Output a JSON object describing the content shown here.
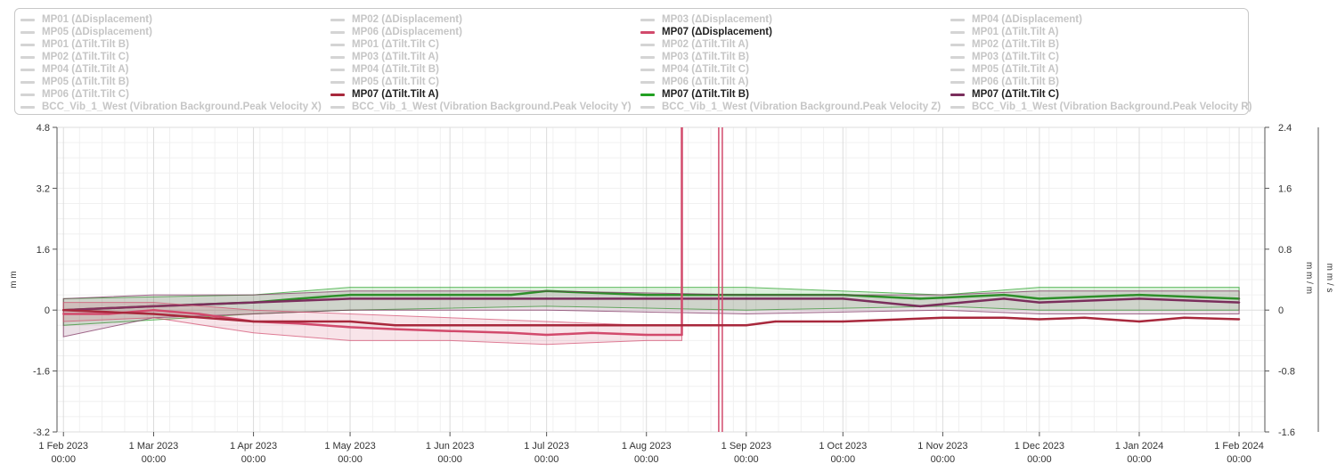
{
  "legend": {
    "items": [
      {
        "label": "MP01 (ΔDisplacement)",
        "visible": false,
        "color": "#d4d4d4"
      },
      {
        "label": "MP02 (ΔDisplacement)",
        "visible": false,
        "color": "#d4d4d4"
      },
      {
        "label": "MP03 (ΔDisplacement)",
        "visible": false,
        "color": "#d4d4d4"
      },
      {
        "label": "MP04 (ΔDisplacement)",
        "visible": false,
        "color": "#d4d4d4"
      },
      {
        "label": "MP05 (ΔDisplacement)",
        "visible": false,
        "color": "#d4d4d4"
      },
      {
        "label": "MP06 (ΔDisplacement)",
        "visible": false,
        "color": "#d4d4d4"
      },
      {
        "label": "MP07 (ΔDisplacement)",
        "visible": true,
        "color": "#d24a6c"
      },
      {
        "label": "MP01 (ΔTilt.Tilt A)",
        "visible": false,
        "color": "#d4d4d4"
      },
      {
        "label": "MP01 (ΔTilt.Tilt B)",
        "visible": false,
        "color": "#d4d4d4"
      },
      {
        "label": "MP01 (ΔTilt.Tilt C)",
        "visible": false,
        "color": "#d4d4d4"
      },
      {
        "label": "MP02 (ΔTilt.Tilt A)",
        "visible": false,
        "color": "#d4d4d4"
      },
      {
        "label": "MP02 (ΔTilt.Tilt B)",
        "visible": false,
        "color": "#d4d4d4"
      },
      {
        "label": "MP02 (ΔTilt.Tilt C)",
        "visible": false,
        "color": "#d4d4d4"
      },
      {
        "label": "MP03 (ΔTilt.Tilt A)",
        "visible": false,
        "color": "#d4d4d4"
      },
      {
        "label": "MP03 (ΔTilt.Tilt B)",
        "visible": false,
        "color": "#d4d4d4"
      },
      {
        "label": "MP03 (ΔTilt.Tilt C)",
        "visible": false,
        "color": "#d4d4d4"
      },
      {
        "label": "MP04 (ΔTilt.Tilt A)",
        "visible": false,
        "color": "#d4d4d4"
      },
      {
        "label": "MP04 (ΔTilt.Tilt B)",
        "visible": false,
        "color": "#d4d4d4"
      },
      {
        "label": "MP04 (ΔTilt.Tilt C)",
        "visible": false,
        "color": "#d4d4d4"
      },
      {
        "label": "MP05 (ΔTilt.Tilt A)",
        "visible": false,
        "color": "#d4d4d4"
      },
      {
        "label": "MP05 (ΔTilt.Tilt B)",
        "visible": false,
        "color": "#d4d4d4"
      },
      {
        "label": "MP05 (ΔTilt.Tilt C)",
        "visible": false,
        "color": "#d4d4d4"
      },
      {
        "label": "MP06 (ΔTilt.Tilt A)",
        "visible": false,
        "color": "#d4d4d4"
      },
      {
        "label": "MP06 (ΔTilt.Tilt B)",
        "visible": false,
        "color": "#d4d4d4"
      },
      {
        "label": "MP06 (ΔTilt.Tilt C)",
        "visible": false,
        "color": "#d4d4d4"
      },
      {
        "label": "MP07 (ΔTilt.Tilt A)",
        "visible": true,
        "color": "#a8283c"
      },
      {
        "label": "MP07 (ΔTilt.Tilt B)",
        "visible": true,
        "color": "#22a022"
      },
      {
        "label": "MP07 (ΔTilt.Tilt C)",
        "visible": true,
        "color": "#7a2e5c"
      },
      {
        "label": "BCC_Vib_1_West (Vibration Background.Peak Velocity X)",
        "visible": false,
        "color": "#d4d4d4"
      },
      {
        "label": "BCC_Vib_1_West (Vibration Background.Peak Velocity Y)",
        "visible": false,
        "color": "#d4d4d4"
      },
      {
        "label": "BCC_Vib_1_West (Vibration Background.Peak Velocity Z)",
        "visible": false,
        "color": "#d4d4d4"
      },
      {
        "label": "BCC_Vib_1_West (Vibration Background.Peak Velocity R)",
        "visible": false,
        "color": "#d4d4d4"
      }
    ]
  },
  "chart_data": {
    "type": "line",
    "left_axis": {
      "label": "m m",
      "ticks": [
        "4.8",
        "3.2",
        "1.6",
        "0",
        "-1.6",
        "-3.2"
      ],
      "range": [
        -3.2,
        4.8
      ]
    },
    "right_axis_1": {
      "label": "m m / m",
      "ticks": [
        "2.4",
        "1.6",
        "0.8",
        "0",
        "-0.8",
        "-1.6"
      ],
      "range": [
        -1.6,
        2.4
      ]
    },
    "right_axis_2": {
      "label": "m m / s",
      "range": [
        -1.6,
        2.4
      ]
    },
    "x_axis": {
      "ticks": [
        {
          "date": "2023-02-01",
          "line1": "1 Feb 2023",
          "line2": "00:00"
        },
        {
          "date": "2023-03-01",
          "line1": "1 Mar 2023",
          "line2": "00:00"
        },
        {
          "date": "2023-04-01",
          "line1": "1 Apr 2023",
          "line2": "00:00"
        },
        {
          "date": "2023-05-01",
          "line1": "1 May 2023",
          "line2": "00:00"
        },
        {
          "date": "2023-06-01",
          "line1": "1 Jun 2023",
          "line2": "00:00"
        },
        {
          "date": "2023-07-01",
          "line1": "1 Jul 2023",
          "line2": "00:00"
        },
        {
          "date": "2023-08-01",
          "line1": "1 Aug 2023",
          "line2": "00:00"
        },
        {
          "date": "2023-09-01",
          "line1": "1 Sep 2023",
          "line2": "00:00"
        },
        {
          "date": "2023-10-01",
          "line1": "1 Oct 2023",
          "line2": "00:00"
        },
        {
          "date": "2023-11-01",
          "line1": "1 Nov 2023",
          "line2": "00:00"
        },
        {
          "date": "2023-12-01",
          "line1": "1 Dec 2023",
          "line2": "00:00"
        },
        {
          "date": "2024-01-01",
          "line1": "1 Jan 2024",
          "line2": "00:00"
        },
        {
          "date": "2024-02-01",
          "line1": "1 Feb 2024",
          "line2": "00:00"
        }
      ],
      "range": [
        "2023-01-30",
        "2024-02-09"
      ]
    },
    "grid": true,
    "series": [
      {
        "name": "MP07 (ΔDisplacement)",
        "color": "#d24a6c",
        "axis": "left",
        "points": [
          [
            "2023-02-01",
            -0.1
          ],
          [
            "2023-02-15",
            -0.1
          ],
          [
            "2023-03-01",
            0.0
          ],
          [
            "2023-03-15",
            -0.1
          ],
          [
            "2023-04-01",
            -0.3
          ],
          [
            "2023-04-15",
            -0.35
          ],
          [
            "2023-05-01",
            -0.45
          ],
          [
            "2023-05-15",
            -0.5
          ],
          [
            "2023-06-01",
            -0.55
          ],
          [
            "2023-06-20",
            -0.6
          ],
          [
            "2023-07-01",
            -0.65
          ],
          [
            "2023-07-15",
            -0.6
          ],
          [
            "2023-08-01",
            -0.65
          ],
          [
            "2023-08-12",
            -0.65
          ],
          [
            "2023-08-12",
            4.8
          ]
        ],
        "envelope": [
          [
            "2023-02-01",
            -0.3,
            0.2
          ],
          [
            "2023-03-01",
            -0.2,
            0.2
          ],
          [
            "2023-04-01",
            -0.6,
            0.0
          ],
          [
            "2023-05-01",
            -0.8,
            -0.1
          ],
          [
            "2023-06-01",
            -0.8,
            -0.2
          ],
          [
            "2023-07-01",
            -0.9,
            -0.3
          ],
          [
            "2023-08-01",
            -0.8,
            -0.4
          ],
          [
            "2023-08-12",
            -0.8,
            -0.4
          ]
        ],
        "spike": {
          "date": "2023-08-24",
          "from": 4.8,
          "to": -3.2
        }
      },
      {
        "name": "MP07 (ΔTilt.Tilt A)",
        "color": "#a8283c",
        "axis": "right",
        "points": [
          [
            "2023-02-01",
            0.0
          ],
          [
            "2023-03-01",
            -0.05
          ],
          [
            "2023-04-01",
            -0.15
          ],
          [
            "2023-05-01",
            -0.15
          ],
          [
            "2023-05-15",
            -0.2
          ],
          [
            "2023-06-01",
            -0.2
          ],
          [
            "2023-07-01",
            -0.2
          ],
          [
            "2023-08-01",
            -0.2
          ],
          [
            "2023-09-01",
            -0.2
          ],
          [
            "2023-09-10",
            -0.15
          ],
          [
            "2023-10-01",
            -0.15
          ],
          [
            "2023-11-01",
            -0.1
          ],
          [
            "2023-11-20",
            -0.1
          ],
          [
            "2023-12-01",
            -0.12
          ],
          [
            "2023-12-15",
            -0.1
          ],
          [
            "2024-01-01",
            -0.15
          ],
          [
            "2024-01-15",
            -0.1
          ],
          [
            "2024-02-01",
            -0.12
          ]
        ]
      },
      {
        "name": "MP07 (ΔTilt.Tilt B)",
        "color": "#22a022",
        "axis": "right",
        "points": [
          [
            "2023-02-01",
            0.0
          ],
          [
            "2023-03-01",
            0.05
          ],
          [
            "2023-04-01",
            0.1
          ],
          [
            "2023-04-15",
            0.15
          ],
          [
            "2023-05-01",
            0.2
          ],
          [
            "2023-06-01",
            0.2
          ],
          [
            "2023-06-20",
            0.2
          ],
          [
            "2023-07-01",
            0.25
          ],
          [
            "2023-08-01",
            0.2
          ],
          [
            "2023-09-01",
            0.2
          ],
          [
            "2023-10-01",
            0.2
          ],
          [
            "2023-10-25",
            0.15
          ],
          [
            "2023-11-20",
            0.2
          ],
          [
            "2023-12-01",
            0.15
          ],
          [
            "2024-01-01",
            0.2
          ],
          [
            "2024-02-01",
            0.15
          ]
        ],
        "envelope": [
          [
            "2023-02-01",
            -0.2,
            0.15
          ],
          [
            "2023-04-01",
            -0.05,
            0.2
          ],
          [
            "2023-05-01",
            0.0,
            0.3
          ],
          [
            "2023-07-01",
            0.05,
            0.3
          ],
          [
            "2023-09-01",
            0.0,
            0.3
          ],
          [
            "2023-11-01",
            0.05,
            0.2
          ],
          [
            "2023-12-01",
            0.0,
            0.3
          ],
          [
            "2024-02-01",
            0.0,
            0.3
          ]
        ]
      },
      {
        "name": "MP07 (ΔTilt.Tilt C)",
        "color": "#7a2e5c",
        "axis": "right",
        "points": [
          [
            "2023-02-01",
            0.0
          ],
          [
            "2023-03-01",
            0.05
          ],
          [
            "2023-04-01",
            0.1
          ],
          [
            "2023-05-01",
            0.15
          ],
          [
            "2023-06-01",
            0.15
          ],
          [
            "2023-07-01",
            0.15
          ],
          [
            "2023-08-01",
            0.15
          ],
          [
            "2023-09-01",
            0.15
          ],
          [
            "2023-10-01",
            0.15
          ],
          [
            "2023-10-25",
            0.05
          ],
          [
            "2023-11-20",
            0.15
          ],
          [
            "2023-12-01",
            0.1
          ],
          [
            "2024-01-01",
            0.15
          ],
          [
            "2024-02-01",
            0.1
          ]
        ],
        "envelope": [
          [
            "2023-02-01",
            -0.35,
            0.15
          ],
          [
            "2023-03-01",
            -0.1,
            0.2
          ],
          [
            "2023-04-01",
            -0.05,
            0.2
          ],
          [
            "2023-05-01",
            0.0,
            0.25
          ],
          [
            "2023-07-01",
            0.0,
            0.25
          ],
          [
            "2023-09-01",
            -0.05,
            0.2
          ],
          [
            "2023-11-01",
            0.0,
            0.2
          ],
          [
            "2023-12-01",
            -0.05,
            0.25
          ],
          [
            "2024-02-01",
            -0.05,
            0.25
          ]
        ]
      }
    ]
  }
}
